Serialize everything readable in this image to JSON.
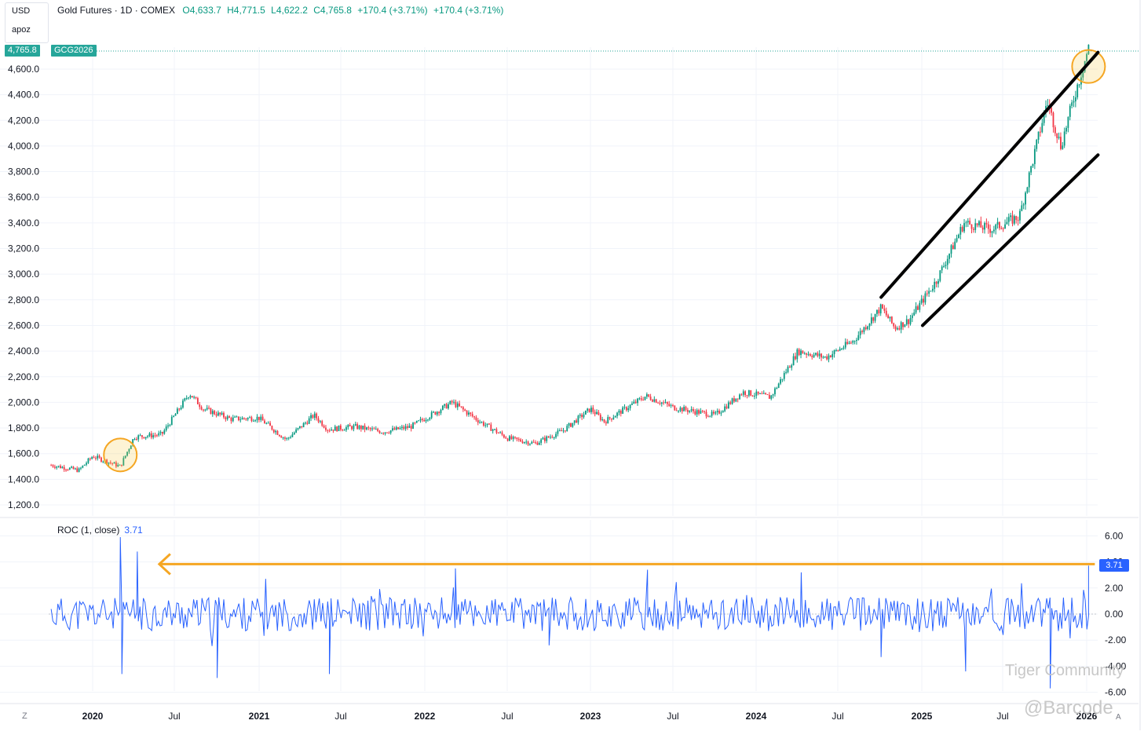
{
  "header": {
    "symbol": "Gold Futures · 1D · COMEX",
    "open": "O4,633.7",
    "high": "H4,771.5",
    "low": "L4,622.2",
    "close": "C4,765.8",
    "change1": "+170.4 (+3.71%)",
    "change2": "+170.4 (+3.71%)"
  },
  "currency_box": {
    "currency": "USD",
    "user": "apoz"
  },
  "last_price_label": "4,765.8",
  "symbol_label": "GCG2026",
  "roc_panel": {
    "title": "ROC (1, close)",
    "value": "3.71",
    "tag": "3.71"
  },
  "watermark": {
    "community": "Tiger Community",
    "handle": "@Barcode"
  },
  "footer": {
    "tz": "Z",
    "auto": "A"
  },
  "colors": {
    "up": "#089981",
    "down": "#f23645",
    "roc": "#2962ff",
    "annotation": "#f5a623",
    "channel": "#000000"
  },
  "chart_data": [
    {
      "type": "line",
      "title": "Gold Futures · 1D · COMEX",
      "x_ticks": [
        "2020",
        "Jul",
        "2021",
        "Jul",
        "2022",
        "Jul",
        "2023",
        "Jul",
        "2024",
        "Jul",
        "2025",
        "Jul",
        "2026"
      ],
      "y_ticks": [
        "1,200.0",
        "1,400.0",
        "1,600.0",
        "1,800.0",
        "2,000.0",
        "2,200.0",
        "2,400.0",
        "2,600.0",
        "2,800.0",
        "3,000.0",
        "3,200.0",
        "3,400.0",
        "3,600.0",
        "3,800.0",
        "4,000.0",
        "4,200.0",
        "4,400.0",
        "4,600.0"
      ],
      "ylim": [
        1180,
        4800
      ],
      "x": [
        "2019-10",
        "2019-12",
        "2020-01",
        "2020-03",
        "2020-04",
        "2020-06",
        "2020-08",
        "2020-09",
        "2020-11",
        "2021-01",
        "2021-03",
        "2021-05",
        "2021-06",
        "2021-08",
        "2021-10",
        "2021-12",
        "2022-03",
        "2022-05",
        "2022-07",
        "2022-09",
        "2022-11",
        "2023-01",
        "2023-02",
        "2023-05",
        "2023-07",
        "2023-10",
        "2023-12",
        "2024-02",
        "2024-04",
        "2024-06",
        "2024-08",
        "2024-10",
        "2024-11",
        "2024-12",
        "2025-02",
        "2025-04",
        "2025-06",
        "2025-08",
        "2025-10",
        "2025-11",
        "2025-12",
        "2026-01"
      ],
      "series": [
        {
          "values": [
            1510,
            1470,
            1580,
            1500,
            1730,
            1750,
            2070,
            1950,
            1870,
            1880,
            1710,
            1900,
            1790,
            1810,
            1770,
            1810,
            2000,
            1850,
            1720,
            1680,
            1780,
            1950,
            1850,
            2050,
            1960,
            1900,
            2080,
            2040,
            2400,
            2350,
            2480,
            2740,
            2580,
            2640,
            2950,
            3400,
            3350,
            3450,
            4350,
            4000,
            4400,
            4765.8
          ]
        }
      ],
      "annotations": [
        {
          "type": "circle",
          "x": "2020-03",
          "y": 1590
        },
        {
          "type": "circle",
          "x": "2026-01",
          "y": 4620
        },
        {
          "type": "channel-line",
          "from": [
            "2024-10",
            2820
          ],
          "to": [
            "2026-01",
            4730
          ]
        },
        {
          "type": "channel-line",
          "from": [
            "2025-01",
            2600
          ],
          "to": [
            "2026-01",
            3930
          ]
        }
      ]
    },
    {
      "type": "line",
      "title": "ROC (1, close)",
      "y_ticks": [
        "-6.00",
        "-4.00",
        "-2.00",
        "0.00",
        "2.00",
        "4.00",
        "6.00"
      ],
      "ylim": [
        -6,
        6
      ],
      "last_value": 3.71,
      "x": [
        "2020-03",
        "2020-03",
        "2020-04",
        "2020-10",
        "2021-06",
        "2022-03",
        "2022-10",
        "2023-05",
        "2024-04",
        "2024-10",
        "2025-04",
        "2025-10",
        "2026-01"
      ],
      "values": [
        5.9,
        -4.6,
        4.8,
        -4.9,
        -4.6,
        3.5,
        -2.4,
        3.4,
        3.2,
        -3.3,
        -4.4,
        -5.7,
        3.71
      ],
      "annotations": [
        {
          "type": "arrow",
          "y": 3.71,
          "from": "2026-01",
          "to": "2020-04"
        }
      ]
    }
  ]
}
